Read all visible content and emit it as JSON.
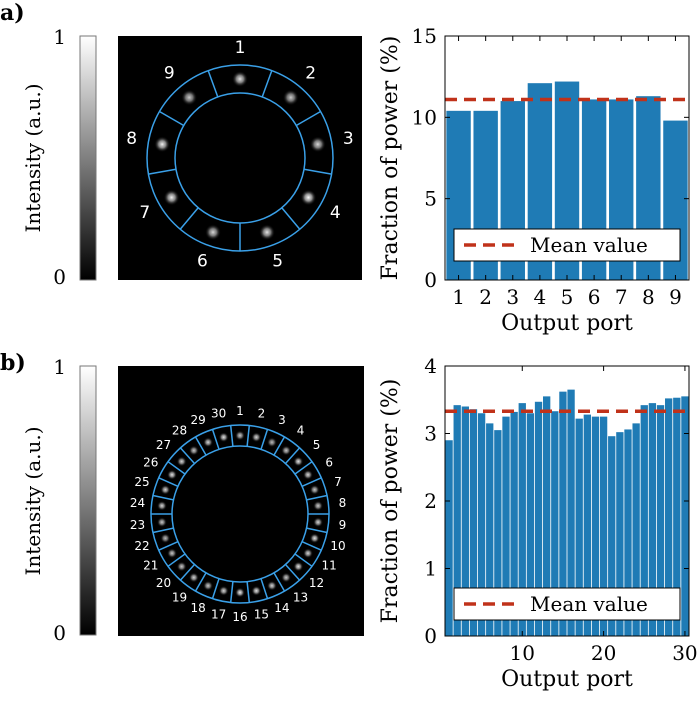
{
  "panels": [
    {
      "label": "a)",
      "colorbar": {
        "label": "Intensity (a.u.)",
        "max_label": "1",
        "min_label": "0"
      },
      "image": {
        "ports": [
          "1",
          "2",
          "3",
          "4",
          "5",
          "6",
          "7",
          "8",
          "9"
        ],
        "spot_intensity": [
          0.9,
          0.8,
          0.85,
          1.0,
          0.9,
          0.85,
          0.95,
          0.95,
          0.8
        ],
        "ring_color": "#3aa0e8"
      }
    },
    {
      "label": "b)",
      "colorbar": {
        "label": "Intensity (a.u.)",
        "max_label": "1",
        "min_label": "0"
      },
      "image": {
        "ports": [
          "1",
          "2",
          "3",
          "4",
          "5",
          "6",
          "7",
          "8",
          "9",
          "10",
          "11",
          "12",
          "13",
          "14",
          "15",
          "16",
          "17",
          "18",
          "19",
          "20",
          "21",
          "22",
          "23",
          "24",
          "25",
          "26",
          "27",
          "28",
          "29",
          "30"
        ],
        "spot_intensity": [
          0.8,
          0.85,
          0.75,
          0.8,
          0.9,
          0.85,
          0.8,
          0.8,
          0.85,
          0.9,
          0.85,
          0.9,
          0.8,
          0.85,
          0.9,
          0.95,
          0.85,
          0.8,
          0.85,
          0.8,
          0.8,
          0.75,
          0.8,
          0.85,
          0.85,
          0.9,
          0.85,
          0.8,
          0.85,
          0.9
        ],
        "ring_color": "#3aa0e8"
      }
    }
  ],
  "chart_data": [
    {
      "type": "bar",
      "categories": [
        1,
        2,
        3,
        4,
        5,
        6,
        7,
        8,
        9
      ],
      "values": [
        10.4,
        10.4,
        11.0,
        12.1,
        12.2,
        11.1,
        11.1,
        11.3,
        9.8
      ],
      "mean": 11.1,
      "xlabel": "Output port",
      "ylabel": "Fraction of power (%)",
      "ylim": [
        0,
        15
      ],
      "yticks": [
        "0",
        "5",
        "10",
        "15"
      ],
      "xticks": [
        "1",
        "2",
        "3",
        "4",
        "5",
        "6",
        "7",
        "8",
        "9"
      ],
      "legend": "Mean value",
      "legend_position": "bottom",
      "bar_color": "#1f7bb5",
      "mean_color": "#c0321a",
      "grid": false
    },
    {
      "type": "bar",
      "categories": [
        1,
        2,
        3,
        4,
        5,
        6,
        7,
        8,
        9,
        10,
        11,
        12,
        13,
        14,
        15,
        16,
        17,
        18,
        19,
        20,
        21,
        22,
        23,
        24,
        25,
        26,
        27,
        28,
        29,
        30
      ],
      "values": [
        2.9,
        3.42,
        3.4,
        3.36,
        3.3,
        3.15,
        3.05,
        3.25,
        3.32,
        3.45,
        3.3,
        3.47,
        3.55,
        3.33,
        3.62,
        3.65,
        3.22,
        3.28,
        3.25,
        3.25,
        2.96,
        3.02,
        3.06,
        3.15,
        3.42,
        3.45,
        3.42,
        3.52,
        3.53,
        3.55
      ],
      "mean": 3.33,
      "xlabel": "Output port",
      "ylabel": "Fraction of power (%)",
      "ylim": [
        0,
        4
      ],
      "yticks": [
        "0",
        "1",
        "2",
        "3",
        "4"
      ],
      "xticks": [
        "10",
        "20",
        "30"
      ],
      "legend": "Mean value",
      "legend_position": "bottom",
      "bar_color": "#1f7bb5",
      "mean_color": "#c0321a",
      "grid": false
    }
  ]
}
